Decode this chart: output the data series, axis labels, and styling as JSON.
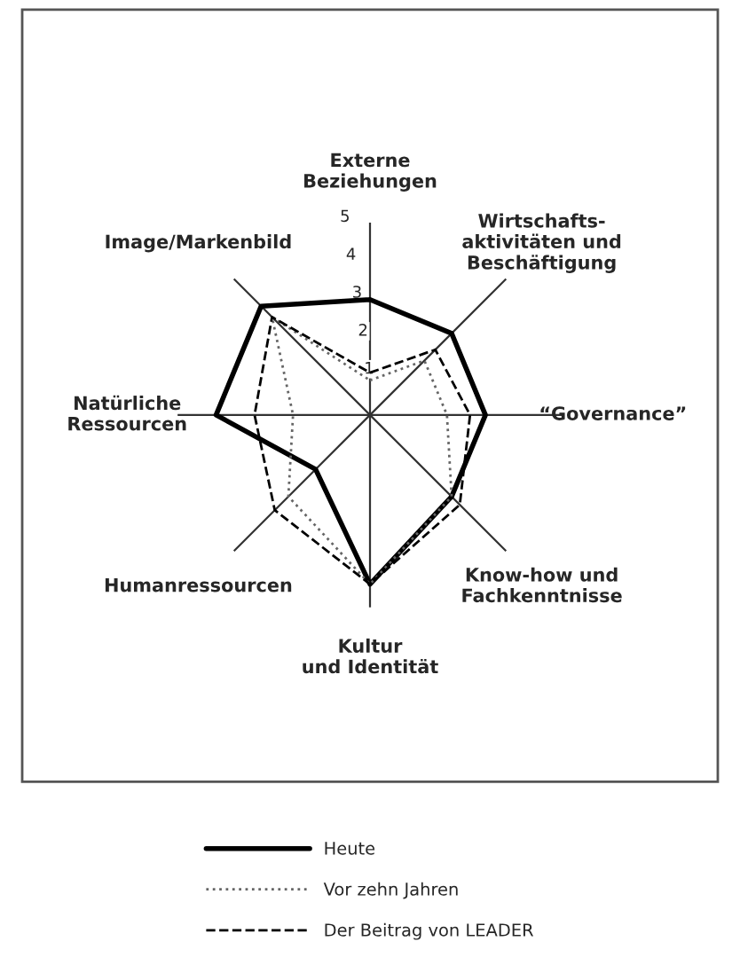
{
  "chart_data": {
    "type": "radar",
    "categories": [
      "Externe\nBeziehungen",
      "Wirtschafts-\naktivitäten und\nBeschäftigung",
      "“Governance”",
      "Know-how und\nFachkenntnisse",
      "Kultur\nund Identität",
      "Humanressourcen",
      "Natürliche\nRessourcen",
      "Image/Markenbild"
    ],
    "series": [
      {
        "name": "Heute",
        "color": "#000000",
        "line_style": "solid",
        "values": [
          3,
          3,
          3,
          3,
          4.4,
          2,
          4,
          4
        ]
      },
      {
        "name": "Vor zehn Jahren",
        "color": "#666666",
        "line_style": "dotted",
        "values": [
          0.9,
          2,
          2,
          3,
          4.4,
          3,
          2,
          3.6
        ]
      },
      {
        "name": "Der Beitrag von LEADER",
        "color": "#000000",
        "line_style": "dashed",
        "values": [
          1.1,
          2.4,
          2.6,
          3.3,
          4.4,
          3.5,
          3,
          3.6
        ]
      }
    ],
    "ylim": [
      0,
      5
    ],
    "yticks": [
      1,
      2,
      3,
      4,
      5
    ],
    "grid": "x",
    "legend": "bottom",
    "marker": "none"
  }
}
